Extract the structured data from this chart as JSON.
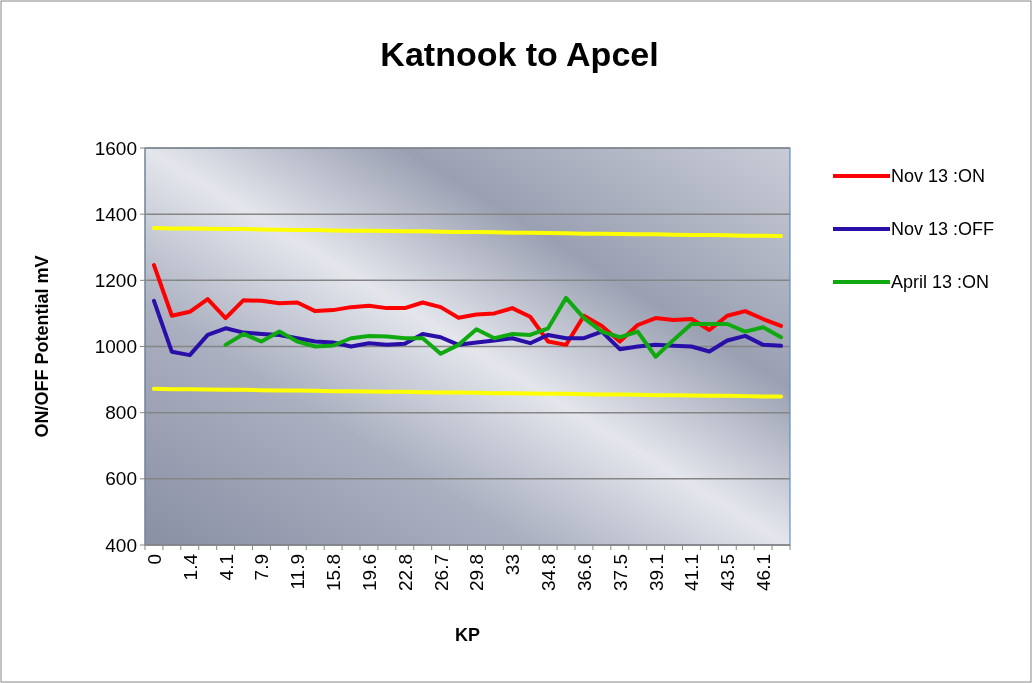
{
  "chart_data": {
    "type": "line",
    "title": "Katnook to Apcel",
    "xlabel": "KP",
    "ylabel": "ON/OFF Potential mV",
    "categories": [
      "0",
      null,
      "1.4",
      null,
      "4.1",
      null,
      "7.9",
      null,
      "11.9",
      null,
      "15.8",
      null,
      "19.6",
      null,
      "22.8",
      null,
      "26.7",
      null,
      "29.8",
      null,
      "33",
      null,
      "34.8",
      null,
      "36.6",
      null,
      "37.5",
      null,
      "39.1",
      null,
      "41.1",
      null,
      "43.5",
      null,
      "46.1",
      null
    ],
    "series": [
      {
        "name": "Nov 13 :ON",
        "color": "#ff0000",
        "values": [
          1246,
          1093,
          1105,
          1143,
          1086,
          1140,
          1138,
          1131,
          1133,
          1107,
          1110,
          1119,
          1123,
          1116,
          1116,
          1133,
          1119,
          1087,
          1097,
          1100,
          1116,
          1090,
          1015,
          1005,
          1093,
          1062,
          1015,
          1065,
          1086,
          1080,
          1083,
          1050,
          1093,
          1107,
          1083,
          1062
        ]
      },
      {
        "name": "Nov 13 :OFF",
        "color": "#2a0ea8",
        "values": [
          1138,
          984,
          974,
          1035,
          1055,
          1042,
          1038,
          1035,
          1025,
          1015,
          1012,
          1000,
          1010,
          1005,
          1008,
          1038,
          1028,
          1005,
          1012,
          1018,
          1025,
          1010,
          1035,
          1025,
          1025,
          1045,
          992,
          1000,
          1005,
          1002,
          1000,
          985,
          1018,
          1032,
          1005,
          1002
        ]
      },
      {
        "name": "April 13 :ON",
        "color": "#10aa10",
        "values": [
          null,
          null,
          null,
          null,
          1005,
          1038,
          1015,
          1045,
          1015,
          1000,
          1003,
          1025,
          1032,
          1030,
          1025,
          1025,
          978,
          1005,
          1052,
          1025,
          1038,
          1035,
          1055,
          1147,
          1086,
          1045,
          1028,
          1045,
          969,
          1020,
          1068,
          1068,
          1068,
          1045,
          1058,
          1028
        ]
      },
      {
        "color": "#ffff00",
        "values": [
          1358,
          1357,
          1357,
          1356,
          1355,
          1355,
          1354,
          1353,
          1352,
          1352,
          1351,
          1350,
          1350,
          1349,
          1348,
          1348,
          1347,
          1346,
          1346,
          1345,
          1344,
          1344,
          1343,
          1342,
          1341,
          1341,
          1340,
          1339,
          1339,
          1338,
          1337,
          1337,
          1336,
          1335,
          1335,
          1334
        ]
      },
      {
        "color": "#ffff00",
        "values": [
          872,
          871,
          871,
          870,
          869,
          869,
          868,
          867,
          867,
          866,
          865,
          865,
          864,
          863,
          863,
          862,
          861,
          861,
          860,
          859,
          859,
          858,
          857,
          857,
          856,
          855,
          855,
          854,
          853,
          853,
          852,
          851,
          851,
          850,
          849,
          849
        ]
      }
    ],
    "ylim": [
      400,
      1600
    ],
    "yticks": [
      400,
      600,
      800,
      1000,
      1200,
      1400,
      1600
    ],
    "grid": "y",
    "legend": "right",
    "marker": "none",
    "line_style": "solid"
  }
}
